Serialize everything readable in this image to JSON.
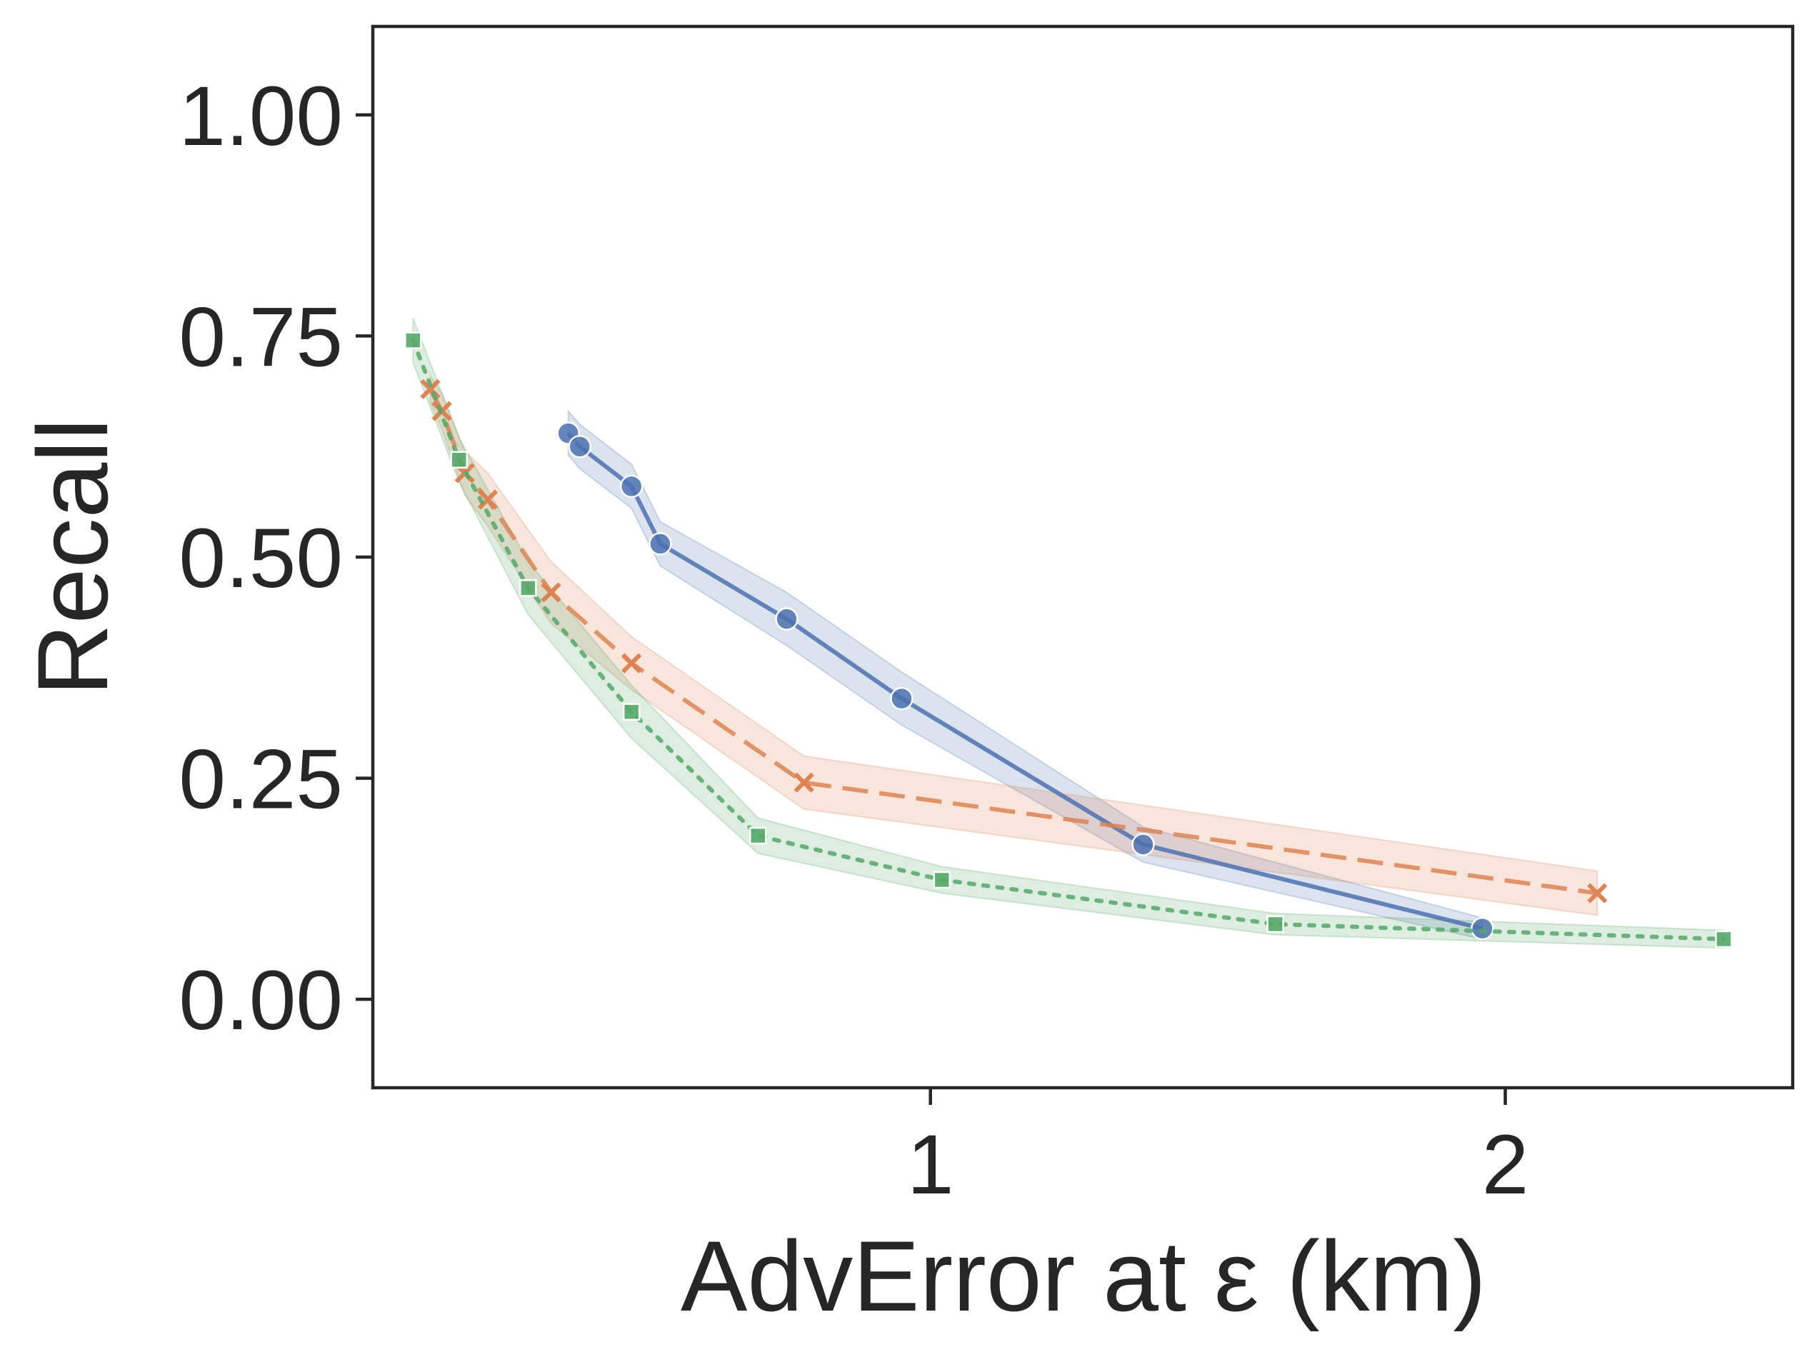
{
  "chart_data": {
    "type": "line",
    "xlabel": "AdvError at ε (km)",
    "ylabel": "Recall",
    "xlim": [
      0.03,
      2.5
    ],
    "ylim": [
      -0.1,
      1.1
    ],
    "xticks": [
      1,
      2
    ],
    "xtick_labels": [
      "1",
      "2"
    ],
    "yticks": [
      0.0,
      0.25,
      0.5,
      0.75,
      1.0
    ],
    "ytick_labels": [
      "0.00",
      "0.25",
      "0.50",
      "0.75",
      "1.00"
    ],
    "grid": false,
    "legend": "none",
    "series": [
      {
        "color": "#4c72b0",
        "line_style": "solid",
        "marker": "circle",
        "points": [
          [
            0.37,
            0.64
          ],
          [
            0.39,
            0.625
          ],
          [
            0.48,
            0.58
          ],
          [
            0.53,
            0.515
          ],
          [
            0.75,
            0.43
          ],
          [
            0.95,
            0.34
          ],
          [
            1.37,
            0.175
          ],
          [
            1.96,
            0.08
          ]
        ],
        "band": [
          0.025,
          0.025,
          0.025,
          0.025,
          0.03,
          0.03,
          0.02,
          0.012
        ]
      },
      {
        "color": "#dd8452",
        "line_style": "dashed",
        "marker": "x",
        "points": [
          [
            0.13,
            0.69
          ],
          [
            0.15,
            0.665
          ],
          [
            0.19,
            0.595
          ],
          [
            0.23,
            0.565
          ],
          [
            0.34,
            0.46
          ],
          [
            0.48,
            0.38
          ],
          [
            0.78,
            0.245
          ],
          [
            2.16,
            0.12
          ]
        ],
        "band": [
          0.015,
          0.02,
          0.025,
          0.03,
          0.035,
          0.03,
          0.03,
          0.025
        ]
      },
      {
        "color": "#55a868",
        "line_style": "dotted",
        "marker": "square",
        "points": [
          [
            0.1,
            0.745
          ],
          [
            0.18,
            0.61
          ],
          [
            0.3,
            0.465
          ],
          [
            0.48,
            0.325
          ],
          [
            0.7,
            0.185
          ],
          [
            1.02,
            0.135
          ],
          [
            1.6,
            0.085
          ],
          [
            2.38,
            0.068
          ]
        ],
        "band": [
          0.025,
          0.025,
          0.03,
          0.03,
          0.02,
          0.015,
          0.012,
          0.01
        ]
      }
    ]
  }
}
